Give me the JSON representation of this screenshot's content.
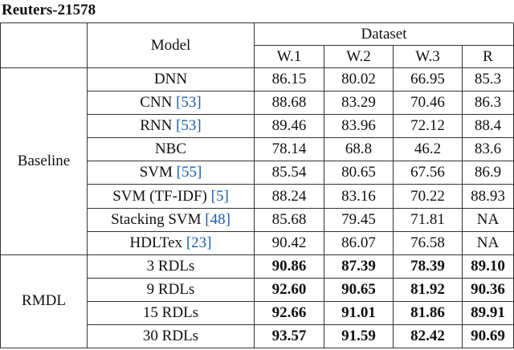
{
  "header": {
    "title": "Reuters-21578"
  },
  "table": {
    "column_headers": {
      "model": "Model",
      "dataset": "Dataset",
      "datasets": [
        "W.1",
        "W.2",
        "W.3",
        "R"
      ]
    },
    "groups": [
      {
        "label": "Baseline",
        "bold_values": false,
        "rows": [
          {
            "model": "DNN",
            "values": [
              "86.15",
              "80.02",
              "66.95",
              "85.3"
            ]
          },
          {
            "model": "CNN",
            "cite": "[53]",
            "values": [
              "88.68",
              "83.29",
              "70.46",
              "86.3"
            ]
          },
          {
            "model": "RNN",
            "cite": "[53]",
            "values": [
              "89.46",
              "83.96",
              "72.12",
              "88.4"
            ]
          },
          {
            "model": "NBC",
            "values": [
              "78.14",
              "68.8",
              "46.2",
              "83.6"
            ]
          },
          {
            "model": "SVM",
            "cite": "[55]",
            "values": [
              "85.54",
              "80.65",
              "67.56",
              "86.9"
            ]
          },
          {
            "model": "SVM (TF-IDF)",
            "cite": "[5]",
            "values": [
              "88.24",
              "83.16",
              "70.22",
              "88.93"
            ]
          },
          {
            "model": "Stacking SVM",
            "cite": "[48]",
            "values": [
              "85.68",
              "79.45",
              "71.81",
              "NA"
            ]
          },
          {
            "model": "HDLTex",
            "cite": "[23]",
            "values": [
              "90.42",
              "86.07",
              "76.58",
              "NA"
            ]
          }
        ]
      },
      {
        "label": "RMDL",
        "bold_values": true,
        "rows": [
          {
            "model": "3 RDLs",
            "values": [
              "90.86",
              "87.39",
              "78.39",
              "89.10"
            ]
          },
          {
            "model": "9 RDLs",
            "values": [
              "92.60",
              "90.65",
              "81.92",
              "90.36"
            ]
          },
          {
            "model": "15 RDLs",
            "values": [
              "92.66",
              "91.01",
              "81.86",
              "89.91"
            ]
          },
          {
            "model": "30 RDLs",
            "values": [
              "93.57",
              "91.59",
              "82.42",
              "90.69"
            ]
          }
        ]
      }
    ]
  }
}
